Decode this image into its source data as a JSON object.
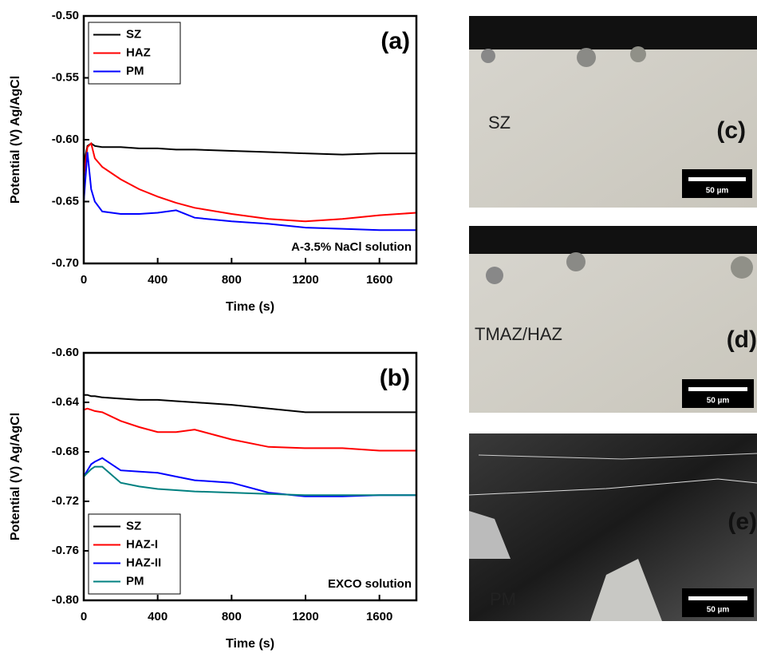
{
  "chart_data": [
    {
      "type": "line",
      "panel_label": "(a)",
      "annotation": "A-3.5% NaCl solution",
      "xlabel": "Time (s)",
      "ylabel": "Potential (V) Ag/AgCl",
      "xlim": [
        0,
        1800
      ],
      "xticks": [
        0,
        400,
        800,
        1200,
        1600
      ],
      "ylim": [
        -0.7,
        -0.5
      ],
      "yticks": [
        {
          "value": -0.7,
          "label": "-0.70"
        },
        -0.65,
        {
          "value": -0.6,
          "label": "-0.60"
        },
        -0.55,
        {
          "value": -0.5,
          "label": "-0.50"
        }
      ],
      "legend": "upper left",
      "x": [
        0,
        20,
        40,
        60,
        100,
        200,
        300,
        400,
        500,
        600,
        800,
        1000,
        1200,
        1400,
        1600,
        1800
      ],
      "series": [
        {
          "name": "SZ",
          "color": "#000000",
          "values": [
            -0.62,
            -0.605,
            -0.603,
            -0.605,
            -0.606,
            -0.606,
            -0.607,
            -0.607,
            -0.608,
            -0.608,
            -0.609,
            -0.61,
            -0.611,
            -0.612,
            -0.611,
            -0.611
          ]
        },
        {
          "name": "HAZ",
          "color": "#ff0000",
          "values": [
            -0.63,
            -0.606,
            -0.603,
            -0.615,
            -0.622,
            -0.632,
            -0.64,
            -0.646,
            -0.651,
            -0.655,
            -0.66,
            -0.664,
            -0.666,
            -0.664,
            -0.661,
            -0.659
          ]
        },
        {
          "name": "PM",
          "color": "#0000ff",
          "values": [
            -0.65,
            -0.61,
            -0.64,
            -0.65,
            -0.658,
            -0.66,
            -0.66,
            -0.659,
            -0.657,
            -0.663,
            -0.666,
            -0.668,
            -0.671,
            -0.672,
            -0.673,
            -0.673
          ]
        }
      ]
    },
    {
      "type": "line",
      "panel_label": "(b)",
      "annotation": "EXCO solution",
      "xlabel": "Time (s)",
      "ylabel": "Potential (V) Ag/AgCl",
      "xlim": [
        0,
        1800
      ],
      "xticks": [
        0,
        400,
        800,
        1200,
        1600
      ],
      "ylim": [
        -0.8,
        -0.6
      ],
      "yticks": [
        {
          "value": -0.8,
          "label": "-0.80"
        },
        -0.76,
        -0.72,
        -0.68,
        -0.64,
        {
          "value": -0.6,
          "label": "-0.60"
        }
      ],
      "legend": "lower left",
      "x": [
        0,
        20,
        40,
        60,
        100,
        200,
        300,
        400,
        500,
        600,
        800,
        1000,
        1200,
        1400,
        1600,
        1800
      ],
      "series": [
        {
          "name": "SZ",
          "color": "#000000",
          "values": [
            -0.634,
            -0.634,
            -0.635,
            -0.635,
            -0.636,
            -0.637,
            -0.638,
            -0.638,
            -0.639,
            -0.64,
            -0.642,
            -0.645,
            -0.648,
            -0.648,
            -0.648,
            -0.648
          ]
        },
        {
          "name": "HAZ-I",
          "color": "#ff0000",
          "values": [
            -0.646,
            -0.645,
            -0.646,
            -0.647,
            -0.648,
            -0.655,
            -0.66,
            -0.664,
            -0.664,
            -0.662,
            -0.67,
            -0.676,
            -0.677,
            -0.677,
            -0.679,
            -0.679
          ]
        },
        {
          "name": "HAZ-II",
          "color": "#0000ff",
          "values": [
            -0.7,
            -0.695,
            -0.69,
            -0.688,
            -0.685,
            -0.695,
            -0.696,
            -0.697,
            -0.7,
            -0.703,
            -0.705,
            -0.713,
            -0.716,
            -0.716,
            -0.715,
            -0.715
          ]
        },
        {
          "name": "PM",
          "color": "#008080",
          "values": [
            -0.7,
            -0.697,
            -0.694,
            -0.692,
            -0.692,
            -0.705,
            -0.708,
            -0.71,
            -0.711,
            -0.712,
            -0.713,
            -0.714,
            -0.715,
            -0.715,
            -0.715,
            -0.715
          ]
        }
      ]
    }
  ],
  "micrographs": [
    {
      "region": "SZ",
      "panel_label": "(c)",
      "scale_bar": "50 µm"
    },
    {
      "region": "TMAZ/HAZ",
      "panel_label": "(d)",
      "scale_bar": "50 µm"
    },
    {
      "region": "PM",
      "panel_label": "(e)",
      "scale_bar": "50 µm"
    }
  ]
}
